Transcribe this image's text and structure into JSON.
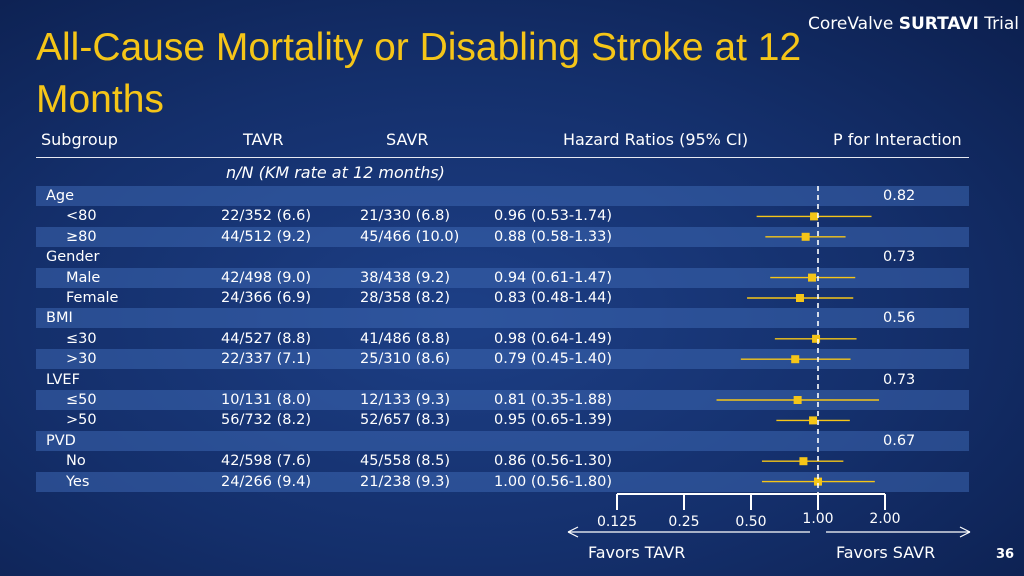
{
  "brand": {
    "prefix": "CoreValve ",
    "bold": "SURTAVI",
    "suffix": " Trial"
  },
  "title": "All-Cause Mortality or Disabling Stroke at 12 Months",
  "headers": {
    "subgroup": "Subgroup",
    "tavr": "TAVR",
    "savr": "SAVR",
    "hr": "Hazard Ratios (95% CI)",
    "p": "P for Interaction"
  },
  "subheader": "n/N (KM rate at 12 months)",
  "page_number": "36",
  "colors": {
    "title": "#f5c518",
    "marker": "#f5c518",
    "text": "#ffffff"
  },
  "chart_data": {
    "type": "forest",
    "x_scale": "log",
    "reference_line": 1.0,
    "ticks_below": [
      "0.125",
      "0.25",
      "0.50"
    ],
    "ticks_above": [
      "1.00",
      "2.00"
    ],
    "tick_values": [
      0.125,
      0.25,
      0.5,
      1.0,
      2.0
    ],
    "favors_left": "Favors  TAVR",
    "favors_right": "Favors  SAVR",
    "rows": [
      {
        "label": "Age",
        "header": true,
        "p": "0.82"
      },
      {
        "label": "<80",
        "tavr": "22/352 (6.6)",
        "savr": "21/330 (6.8)",
        "hr_text": "0.96 (0.53-1.74)",
        "hr": 0.96,
        "lo": 0.53,
        "hi": 1.74
      },
      {
        "label": "≥80",
        "tavr": "44/512 (9.2)",
        "savr": "45/466 (10.0)",
        "hr_text": "0.88 (0.58-1.33)",
        "hr": 0.88,
        "lo": 0.58,
        "hi": 1.33
      },
      {
        "label": "Gender",
        "header": true,
        "p": "0.73"
      },
      {
        "label": "Male",
        "tavr": "42/498 (9.0)",
        "savr": "38/438 (9.2)",
        "hr_text": "0.94 (0.61-1.47)",
        "hr": 0.94,
        "lo": 0.61,
        "hi": 1.47
      },
      {
        "label": "Female",
        "tavr": "24/366 (6.9)",
        "savr": "28/358 (8.2)",
        "hr_text": "0.83 (0.48-1.44)",
        "hr": 0.83,
        "lo": 0.48,
        "hi": 1.44
      },
      {
        "label": "BMI",
        "header": true,
        "p": "0.56"
      },
      {
        "label": "≤30",
        "tavr": "44/527 (8.8)",
        "savr": "41/486 (8.8)",
        "hr_text": "0.98 (0.64-1.49)",
        "hr": 0.98,
        "lo": 0.64,
        "hi": 1.49
      },
      {
        "label": ">30",
        "tavr": "22/337 (7.1)",
        "savr": "25/310 (8.6)",
        "hr_text": "0.79 (0.45-1.40)",
        "hr": 0.79,
        "lo": 0.45,
        "hi": 1.4
      },
      {
        "label": "LVEF",
        "header": true,
        "p": "0.73"
      },
      {
        "label": "≤50",
        "tavr": "10/131 (8.0)",
        "savr": "12/133 (9.3)",
        "hr_text": "0.81 (0.35-1.88)",
        "hr": 0.81,
        "lo": 0.35,
        "hi": 1.88
      },
      {
        "label": ">50",
        "tavr": "56/732 (8.2)",
        "savr": "52/657 (8.3)",
        "hr_text": "0.95 (0.65-1.39)",
        "hr": 0.95,
        "lo": 0.65,
        "hi": 1.39
      },
      {
        "label": "PVD",
        "header": true,
        "p": "0.67"
      },
      {
        "label": "No",
        "tavr": "42/598 (7.6)",
        "savr": "45/558 (8.5)",
        "hr_text": "0.86 (0.56-1.30)",
        "hr": 0.86,
        "lo": 0.56,
        "hi": 1.3
      },
      {
        "label": "Yes",
        "tavr": "24/266 (9.4)",
        "savr": "21/238 (9.3)",
        "hr_text": "1.00 (0.56-1.80)",
        "hr": 1.0,
        "lo": 0.56,
        "hi": 1.8
      }
    ]
  }
}
